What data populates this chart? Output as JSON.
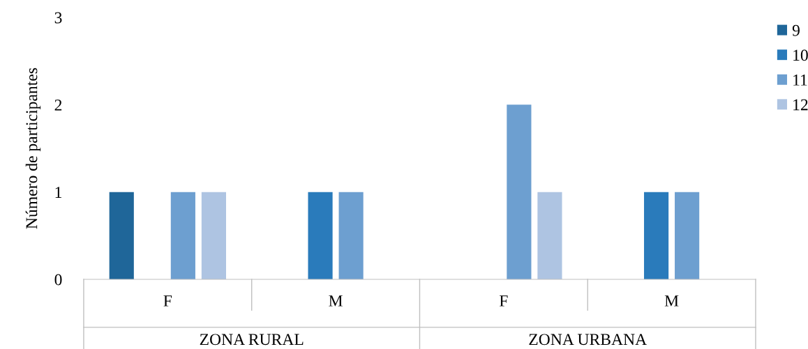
{
  "chart_data": {
    "type": "bar",
    "ylabel": "Número de participantes",
    "categories": [
      "F",
      "M",
      "F",
      "M"
    ],
    "series": [
      {
        "name": "9",
        "color": "#1f6699",
        "values": [
          1,
          0,
          0,
          0
        ]
      },
      {
        "name": "10",
        "color": "#2a7bbb",
        "values": [
          0,
          1,
          0,
          1
        ]
      },
      {
        "name": "11",
        "color": "#6d9fd0",
        "values": [
          1,
          1,
          2,
          1
        ]
      },
      {
        "name": "12",
        "color": "#aec4e2",
        "values": [
          1,
          0,
          1,
          0
        ]
      }
    ],
    "annotations": [
      "ZONA RURAL",
      "ZONA URBANA"
    ],
    "ylim": [
      0,
      3
    ],
    "yticks": [
      0,
      1,
      2,
      3
    ],
    "grid": false,
    "legend": "top right"
  }
}
